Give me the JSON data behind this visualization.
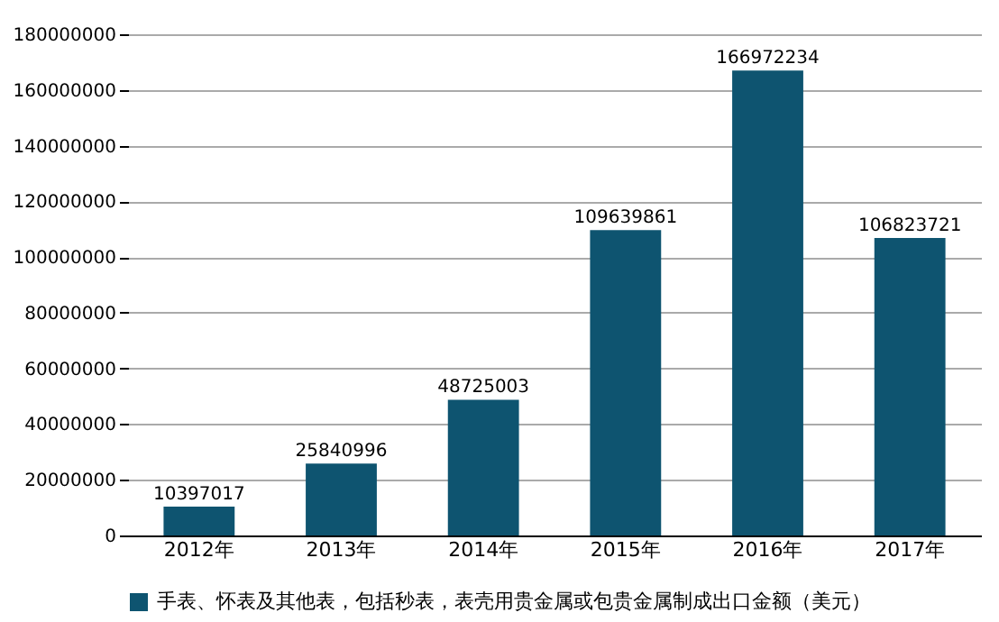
{
  "chart_data": {
    "type": "bar",
    "categories": [
      "2012年",
      "2013年",
      "2014年",
      "2015年",
      "2016年",
      "2017年"
    ],
    "series": [
      {
        "name": "手表、怀表及其他表，包括秒表，表壳用贵金属或包贵金属制成出口金额（美元）",
        "color": "#0e5470",
        "values": [
          10397017,
          25840996,
          48725003,
          109639861,
          166972234,
          106823721
        ]
      }
    ],
    "ylim": [
      0,
      180000000
    ],
    "yticks": [
      0,
      20000000,
      40000000,
      60000000,
      80000000,
      100000000,
      120000000,
      140000000,
      160000000,
      180000000
    ],
    "grid": "y",
    "legend": "bottom",
    "data_labels": true
  }
}
